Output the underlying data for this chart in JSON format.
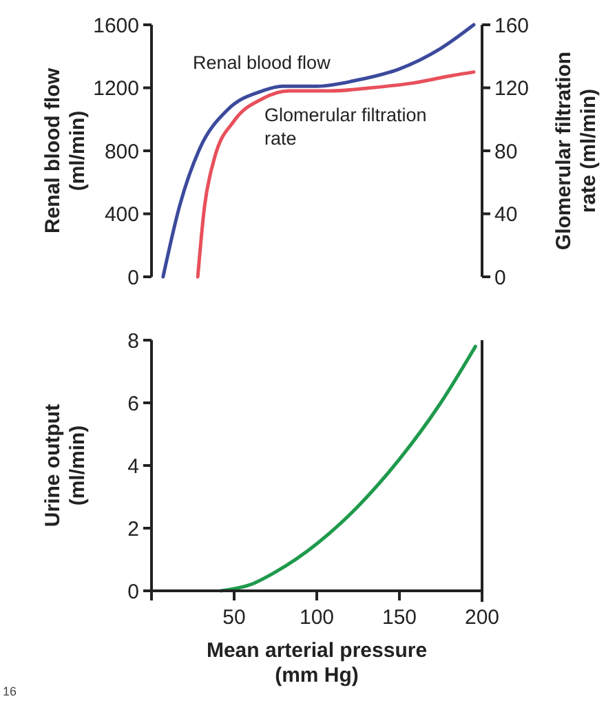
{
  "chart_data": [
    {
      "type": "line",
      "xlabel": null,
      "ylabel": "Renal blood flow (ml/min)",
      "y2label": "Glomerular filtration rate (ml/min)",
      "xlim": [
        0,
        200
      ],
      "ylim": [
        0,
        1600
      ],
      "yticks": [
        0,
        400,
        800,
        1200,
        1600
      ],
      "y2lim": [
        0,
        160
      ],
      "y2ticks": [
        0,
        40,
        80,
        120,
        160
      ],
      "tick_labels": "y",
      "series": [
        {
          "name": "Renal blood flow",
          "color": "#3c4a9c",
          "x": [
            7,
            17,
            29,
            46,
            67,
            79,
            100,
            125,
            150,
            175,
            195
          ],
          "values": [
            0,
            450,
            810,
            1060,
            1180,
            1210,
            1210,
            1250,
            1320,
            1450,
            1600
          ]
        },
        {
          "name": "Glomerular filtration rate",
          "color": "#e8505b",
          "axis": "y2",
          "x": [
            28,
            32,
            38,
            50,
            67,
            83,
            108,
            133,
            158,
            183,
            195
          ],
          "values": [
            0,
            44,
            75,
            99,
            113,
            118,
            118,
            120,
            123,
            128,
            130
          ]
        }
      ]
    },
    {
      "type": "line",
      "xlabel": "Mean arterial pressure (mm Hg)",
      "ylabel": "Urine output (ml/min)",
      "xlim": [
        0,
        200
      ],
      "xticks": [
        {
          "value": 0,
          "label": null
        },
        50,
        100,
        150,
        200
      ],
      "ylim": [
        0,
        8
      ],
      "yticks": [
        0,
        2,
        4,
        6,
        8
      ],
      "annotations": [
        "16"
      ],
      "series": [
        {
          "color": "#1e9a4c",
          "x": [
            42,
            60,
            75,
            100,
            125,
            150,
            175,
            196
          ],
          "values": [
            0,
            0.2,
            0.6,
            1.5,
            2.7,
            4.2,
            6,
            7.8
          ]
        }
      ]
    }
  ]
}
